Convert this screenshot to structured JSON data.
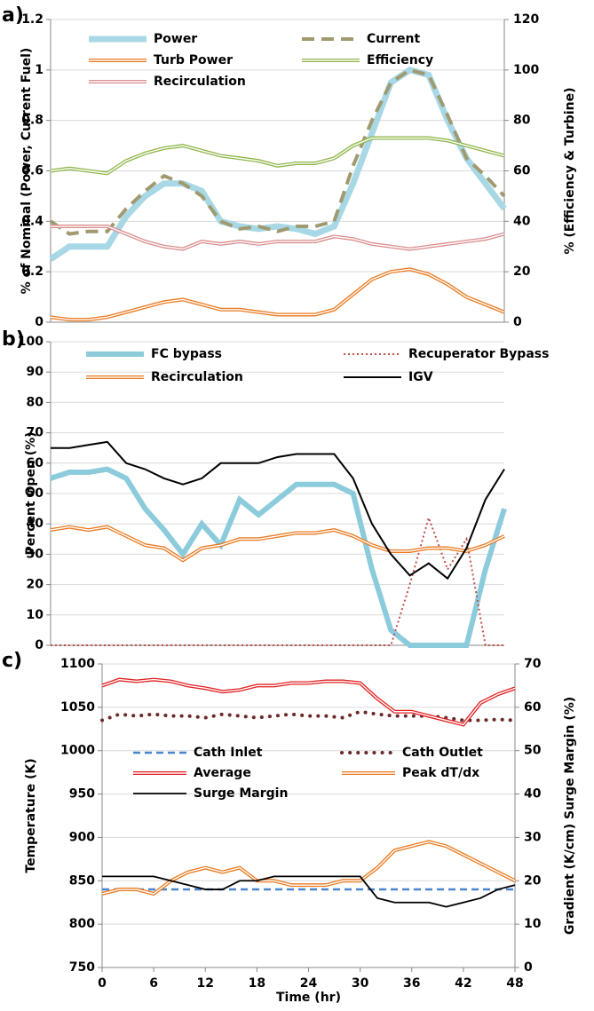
{
  "chart_data": [
    {
      "type": "line",
      "label": "a)",
      "ylabel": "% of Nominal (Power, Current Fuel)",
      "y2label": "% (Efficiency & Turbine)",
      "x": [
        0,
        2,
        4,
        6,
        8,
        10,
        12,
        14,
        16,
        18,
        20,
        22,
        24,
        26,
        28,
        30,
        32,
        34,
        36,
        38,
        40,
        42,
        44,
        46,
        48
      ],
      "xlim": [
        0,
        48
      ],
      "ylim": [
        0,
        1.2
      ],
      "yticks": [
        0,
        0.2,
        0.4,
        0.6,
        0.8,
        1,
        1.2
      ],
      "y2lim": [
        0,
        120
      ],
      "y2ticks": [
        0,
        20,
        40,
        60,
        80,
        100,
        120
      ],
      "grid": true,
      "series": [
        {
          "name": "Power",
          "color": "#a8d8e6",
          "style": "solid",
          "width": 7,
          "values": [
            0.25,
            0.3,
            0.3,
            0.3,
            0.42,
            0.5,
            0.55,
            0.55,
            0.52,
            0.4,
            0.38,
            0.37,
            0.38,
            0.37,
            0.35,
            0.38,
            0.55,
            0.75,
            0.95,
            1.0,
            0.98,
            0.8,
            0.65,
            0.55,
            0.45
          ]
        },
        {
          "name": "Current",
          "color": "#a09a70",
          "style": "dashed",
          "width": 4,
          "values": [
            0.4,
            0.35,
            0.36,
            0.36,
            0.45,
            0.52,
            0.58,
            0.55,
            0.5,
            0.4,
            0.37,
            0.38,
            0.36,
            0.38,
            0.38,
            0.4,
            0.62,
            0.8,
            0.95,
            1.0,
            0.98,
            0.82,
            0.65,
            0.58,
            0.5
          ]
        },
        {
          "name": "Turb Power",
          "color": "#e87a20",
          "style": "double",
          "width": 4,
          "axis": "y2",
          "values": [
            2,
            1,
            1,
            2,
            4,
            6,
            8,
            9,
            7,
            5,
            5,
            4,
            3,
            3,
            3,
            5,
            11,
            17,
            20,
            21,
            19,
            15,
            10,
            7,
            4
          ]
        },
        {
          "name": "Efficiency",
          "color": "#8fb54a",
          "style": "double",
          "width": 4,
          "axis": "y2",
          "values": [
            60,
            61,
            60,
            59,
            64,
            67,
            69,
            70,
            68,
            66,
            65,
            64,
            62,
            63,
            63,
            65,
            70,
            73,
            73,
            73,
            73,
            72,
            70,
            68,
            66
          ]
        },
        {
          "name": "Recirculation",
          "color": "#d98c8c",
          "style": "double",
          "width": 4,
          "axis": "y2",
          "values": [
            38,
            38,
            38,
            38,
            35,
            32,
            30,
            29,
            32,
            31,
            32,
            31,
            32,
            32,
            32,
            34,
            33,
            31,
            30,
            29,
            30,
            31,
            32,
            33,
            35
          ]
        }
      ]
    },
    {
      "type": "line",
      "label": "b)",
      "ylabel": "Percent Open (%)",
      "x": [
        0,
        2,
        4,
        6,
        8,
        10,
        12,
        14,
        16,
        18,
        20,
        22,
        24,
        26,
        28,
        30,
        32,
        34,
        36,
        38,
        40,
        42,
        44,
        46,
        48
      ],
      "xlim": [
        0,
        48
      ],
      "ylim": [
        0,
        100
      ],
      "yticks": [
        0,
        10,
        20,
        30,
        40,
        50,
        60,
        70,
        80,
        90,
        100
      ],
      "grid": true,
      "series": [
        {
          "name": "FC bypass",
          "color": "#8ccbdc",
          "style": "solid",
          "width": 6,
          "values": [
            55,
            57,
            57,
            58,
            55,
            45,
            38,
            30,
            40,
            33,
            48,
            43,
            48,
            53,
            53,
            53,
            50,
            25,
            5,
            0,
            0,
            0,
            0,
            25,
            45
          ]
        },
        {
          "name": "Recuperator Bypass",
          "color": "#c0504d",
          "style": "dotted",
          "width": 2,
          "values": [
            0,
            0,
            0,
            0,
            0,
            0,
            0,
            0,
            0,
            0,
            0,
            0,
            0,
            0,
            0,
            0,
            0,
            0,
            0,
            20,
            42,
            25,
            35,
            0,
            0
          ]
        },
        {
          "name": "Recirculation",
          "color": "#e87a20",
          "style": "double",
          "width": 4,
          "values": [
            38,
            39,
            38,
            39,
            36,
            33,
            32,
            28,
            32,
            33,
            35,
            35,
            36,
            37,
            37,
            38,
            36,
            33,
            31,
            31,
            32,
            32,
            31,
            33,
            36
          ]
        },
        {
          "name": "IGV",
          "color": "#000000",
          "style": "solid",
          "width": 2,
          "values": [
            65,
            65,
            66,
            67,
            60,
            58,
            55,
            53,
            55,
            60,
            60,
            60,
            62,
            63,
            63,
            63,
            55,
            40,
            30,
            23,
            27,
            22,
            32,
            48,
            58
          ]
        }
      ]
    },
    {
      "type": "line",
      "label": "c)",
      "ylabel": "Temperature (K)",
      "y2label": "Gradient (K/cm) Surge Margin (%)",
      "xlabel": "Time (hr)",
      "x": [
        0,
        2,
        4,
        6,
        8,
        10,
        12,
        14,
        16,
        18,
        20,
        22,
        24,
        26,
        28,
        30,
        32,
        34,
        36,
        38,
        40,
        42,
        44,
        46,
        48
      ],
      "xlim": [
        0,
        48
      ],
      "xticks": [
        0,
        6,
        12,
        18,
        24,
        30,
        36,
        42,
        48
      ],
      "ylim": [
        750,
        1100
      ],
      "yticks": [
        750,
        800,
        850,
        900,
        950,
        1000,
        1050,
        1100
      ],
      "y2lim": [
        0,
        70
      ],
      "y2ticks": [
        0,
        10,
        20,
        30,
        40,
        50,
        60,
        70
      ],
      "grid": true,
      "series": [
        {
          "name": "Cath Inlet",
          "color": "#4a86d0",
          "style": "dashed",
          "width": 2.5,
          "values": [
            840,
            840,
            840,
            840,
            840,
            840,
            840,
            840,
            840,
            840,
            840,
            840,
            840,
            840,
            840,
            840,
            840,
            840,
            840,
            840,
            840,
            840,
            840,
            840,
            840
          ]
        },
        {
          "name": "Cath Outlet",
          "color": "#6b2a2a",
          "style": "dotted",
          "width": 4,
          "values": [
            1035,
            1042,
            1040,
            1042,
            1040,
            1040,
            1038,
            1042,
            1040,
            1038,
            1040,
            1042,
            1040,
            1040,
            1038,
            1045,
            1042,
            1040,
            1040,
            1040,
            1038,
            1035,
            1035,
            1036,
            1035
          ]
        },
        {
          "name": "Average",
          "color": "#e02020",
          "style": "double",
          "width": 4,
          "values": [
            1075,
            1082,
            1080,
            1082,
            1080,
            1075,
            1072,
            1068,
            1070,
            1075,
            1075,
            1078,
            1078,
            1080,
            1080,
            1078,
            1060,
            1045,
            1045,
            1040,
            1035,
            1030,
            1055,
            1065,
            1072
          ]
        },
        {
          "name": "Peak dT/dx",
          "color": "#e87a20",
          "style": "double",
          "width": 4,
          "axis": "y2",
          "values": [
            17,
            18,
            18,
            17,
            20,
            22,
            23,
            22,
            23,
            20,
            20,
            19,
            19,
            19,
            20,
            20,
            23,
            27,
            28,
            29,
            28,
            26,
            24,
            22,
            20
          ]
        },
        {
          "name": "Surge Margin",
          "color": "#000000",
          "style": "solid",
          "width": 1.8,
          "axis": "y2",
          "values": [
            21,
            21,
            21,
            21,
            20,
            19,
            18,
            18,
            20,
            20,
            21,
            21,
            21,
            21,
            21,
            21,
            16,
            15,
            15,
            15,
            14,
            15,
            16,
            18,
            19
          ]
        }
      ]
    }
  ]
}
